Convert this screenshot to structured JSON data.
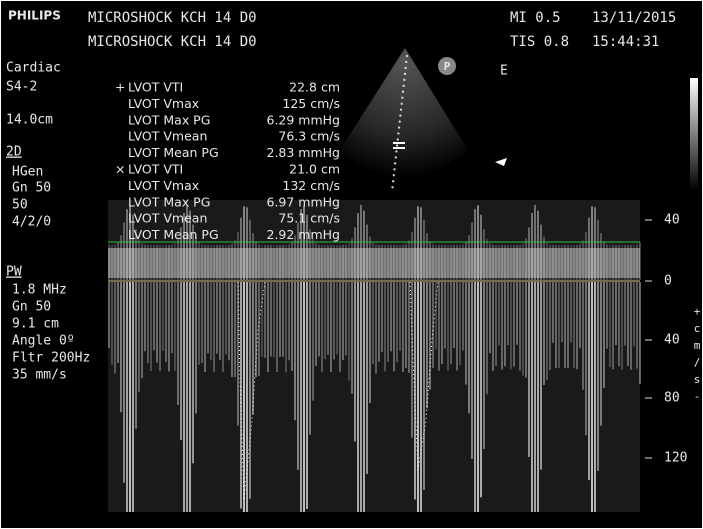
{
  "header": {
    "brand": "PHILIPS",
    "line1": "MICROSHOCK KCH 14 D0",
    "line2": "MICROSHOCK KCH 14 D0",
    "mi": "MI 0.5",
    "tis": "TIS 0.8",
    "date": "13/11/2015",
    "time": "15:44:31"
  },
  "left_panel": {
    "preset": "Cardiac",
    "probe": "S4-2",
    "depth": "14.0cm",
    "mode_2d": "2D",
    "hgen": "HGen",
    "gain_2d": "Gn 50",
    "value_50": "50",
    "setting": "4/2/0",
    "mode_pw": "PW",
    "freq": "1.8 MHz",
    "gain_pw": "Gn 50",
    "gate": "9.1 cm",
    "angle": "Angle 0º",
    "filter": "Fltr 200Hz",
    "sweep": "35 mm/s"
  },
  "measurements": [
    {
      "marker": "+",
      "label": "LVOT VTI",
      "value": "22.8 cm"
    },
    {
      "marker": "",
      "label": "LVOT Vmax",
      "value": "125 cm/s"
    },
    {
      "marker": "",
      "label": "LVOT Max PG",
      "value": "6.29 mmHg"
    },
    {
      "marker": "",
      "label": "LVOT Vmean",
      "value": "76.3 cm/s"
    },
    {
      "marker": "",
      "label": "LVOT Mean PG",
      "value": "2.83 mmHg"
    },
    {
      "marker": "×",
      "label": "LVOT VTI",
      "value": "21.0 cm"
    },
    {
      "marker": "",
      "label": "LVOT Vmax",
      "value": "132 cm/s"
    },
    {
      "marker": "",
      "label": "LVOT Max PG",
      "value": "6.97 mmHg"
    },
    {
      "marker": "",
      "label": "LVOT Vmean",
      "value": "75.1 cm/s"
    },
    {
      "marker": "",
      "label": "LVOT Mean PG",
      "value": "2.92 mmHg"
    }
  ],
  "image": {
    "probe_marker": "P",
    "label_e": "E"
  },
  "scale": {
    "ticks": [
      "40",
      "0",
      "40",
      "80",
      "120"
    ],
    "unit": [
      "+",
      "c",
      "m",
      "/",
      "s",
      "-"
    ]
  }
}
